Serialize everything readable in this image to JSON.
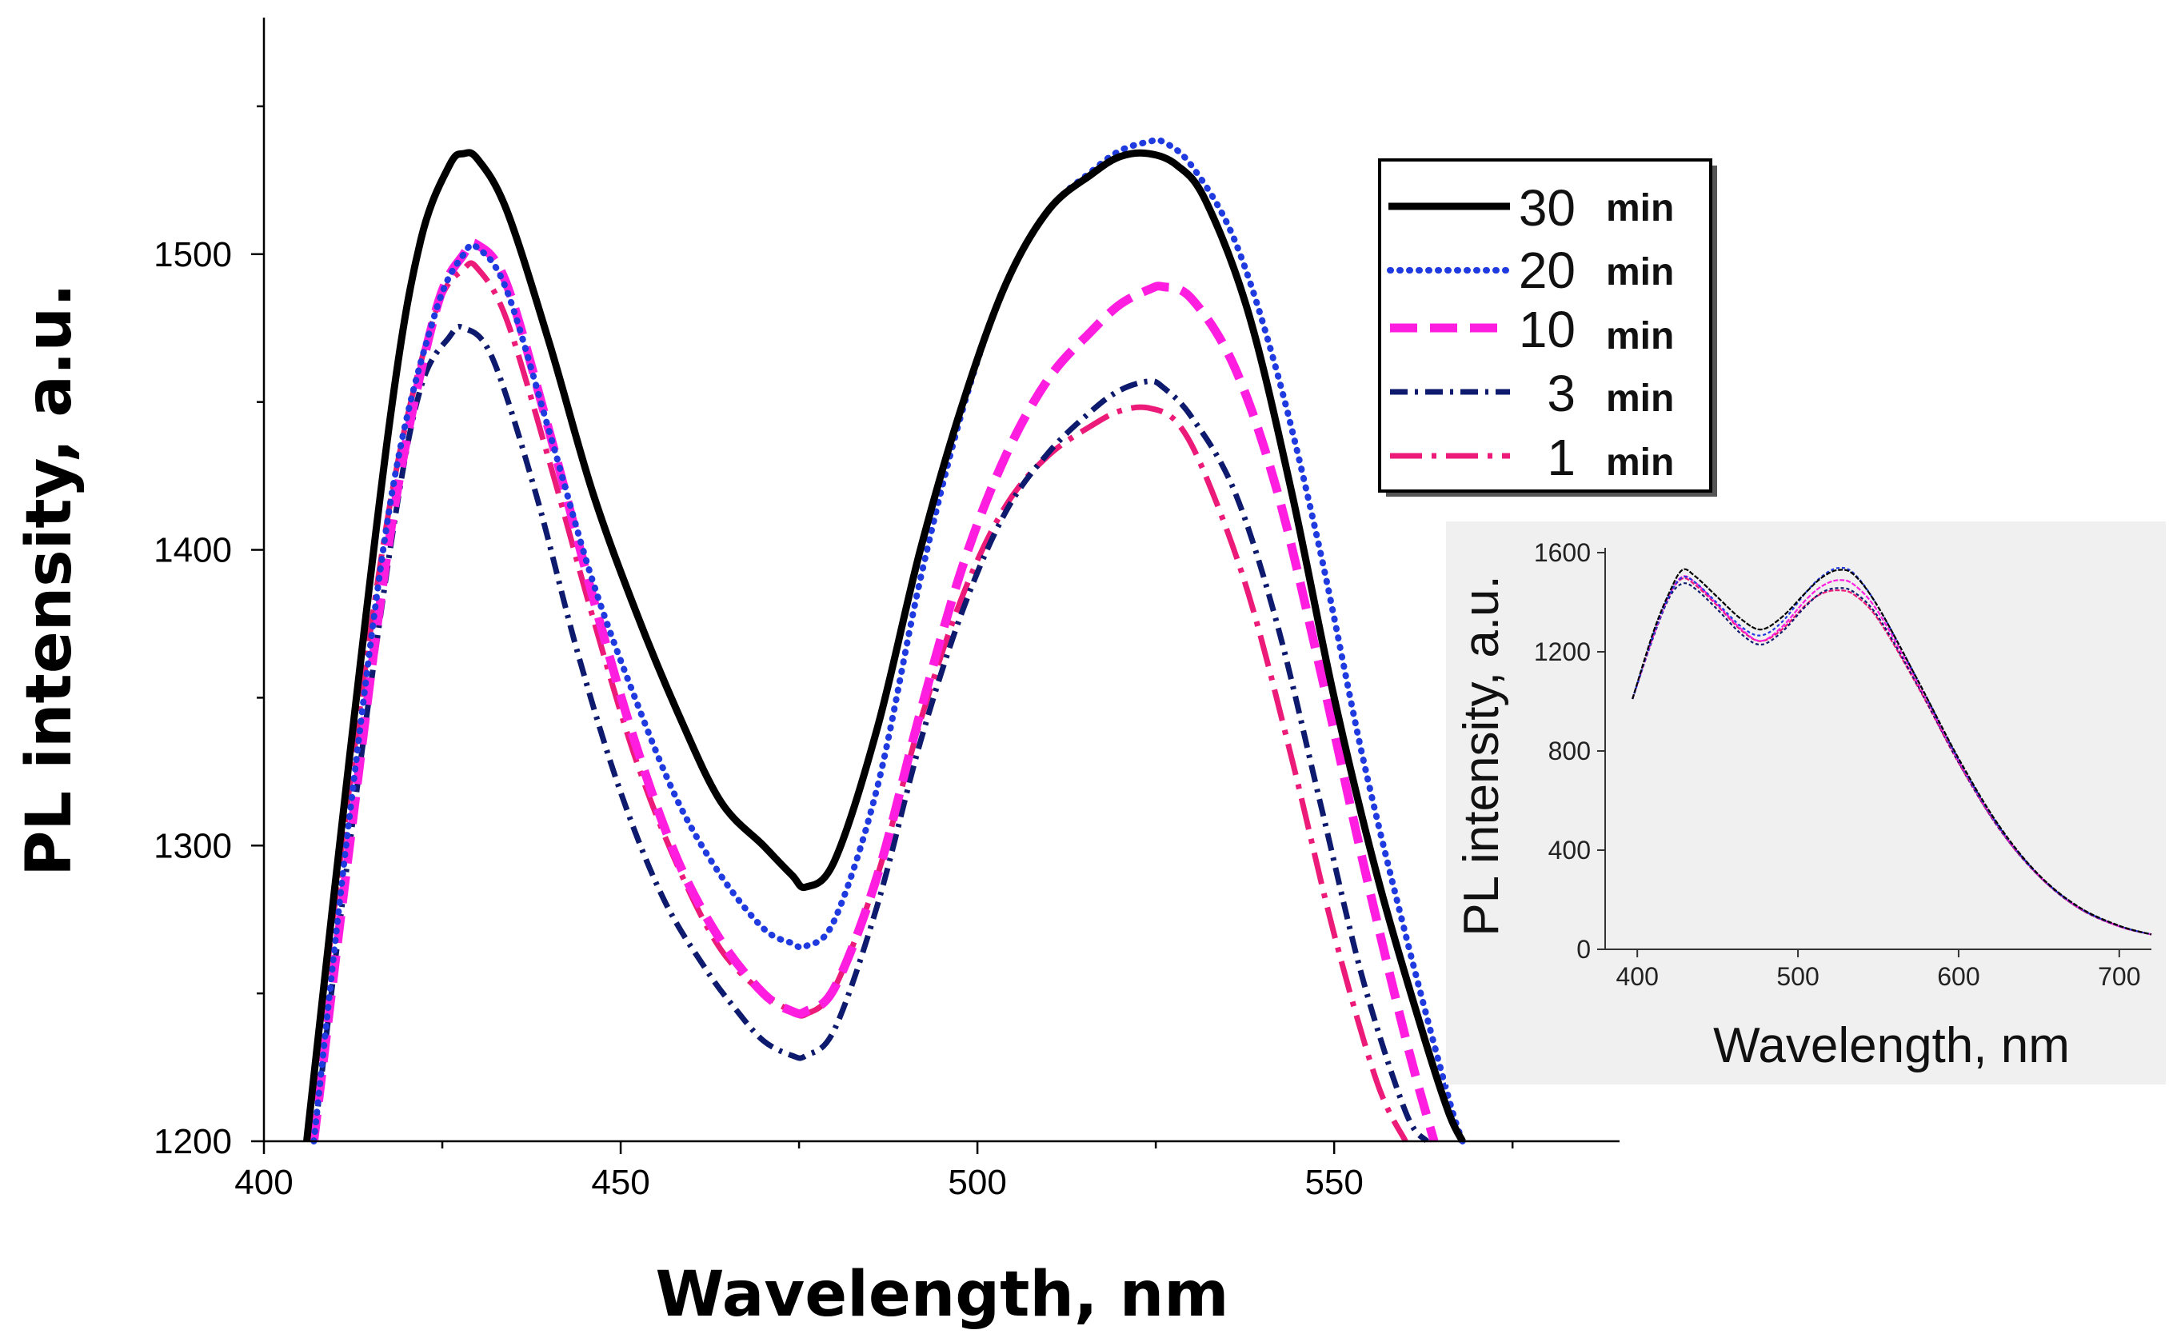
{
  "chart_data": [
    {
      "type": "line",
      "id": "main",
      "xlabel": "Wavelength, nm",
      "ylabel": "PL intensity, a.u.",
      "xlim": [
        400,
        590
      ],
      "ylim": [
        1200,
        1580
      ],
      "xticks": [
        400,
        450,
        500,
        550
      ],
      "yticks": [
        1200,
        1300,
        1400,
        1500
      ],
      "legend_position": "top-right",
      "series": [
        {
          "name": "30",
          "unit": "min",
          "color": "#000000",
          "style": "solid",
          "x": [
            406,
            412,
            418,
            422,
            426,
            428,
            430,
            434,
            440,
            446,
            452,
            458,
            464,
            470,
            474,
            476,
            480,
            486,
            492,
            498,
            504,
            510,
            516,
            520,
            524,
            528,
            532,
            538,
            544,
            550,
            556,
            562,
            566,
            568
          ],
          "y": [
            1200,
            1330,
            1450,
            1505,
            1530,
            1534,
            1532,
            1515,
            1470,
            1420,
            1380,
            1345,
            1315,
            1300,
            1290,
            1286,
            1295,
            1340,
            1400,
            1450,
            1490,
            1515,
            1527,
            1533,
            1534,
            1530,
            1518,
            1480,
            1420,
            1350,
            1290,
            1240,
            1210,
            1200
          ]
        },
        {
          "name": "20",
          "unit": "min",
          "color": "#1f3be0",
          "style": "dotted",
          "x": [
            407,
            412,
            418,
            424,
            428,
            430,
            434,
            440,
            446,
            452,
            458,
            464,
            470,
            474,
            476,
            480,
            486,
            492,
            498,
            504,
            510,
            516,
            520,
            524,
            526,
            530,
            536,
            542,
            548,
            554,
            560,
            566,
            568
          ],
          "y": [
            1200,
            1310,
            1420,
            1480,
            1500,
            1502,
            1488,
            1440,
            1390,
            1350,
            1315,
            1290,
            1272,
            1267,
            1266,
            1275,
            1320,
            1390,
            1448,
            1490,
            1515,
            1528,
            1535,
            1538,
            1538,
            1530,
            1505,
            1460,
            1400,
            1330,
            1270,
            1215,
            1200
          ]
        },
        {
          "name": "10",
          "unit": "min",
          "color": "#ff1ee0",
          "style": "dashed",
          "x": [
            407,
            412,
            418,
            424,
            428,
            430,
            434,
            440,
            446,
            452,
            458,
            464,
            470,
            474,
            476,
            480,
            486,
            492,
            498,
            504,
            510,
            516,
            520,
            524,
            526,
            530,
            536,
            542,
            548,
            554,
            560,
            564
          ],
          "y": [
            1200,
            1300,
            1410,
            1480,
            1500,
            1503,
            1490,
            1440,
            1385,
            1335,
            1295,
            1268,
            1250,
            1244,
            1244,
            1252,
            1290,
            1345,
            1395,
            1432,
            1458,
            1474,
            1483,
            1488,
            1489,
            1485,
            1462,
            1420,
            1360,
            1295,
            1235,
            1200
          ]
        },
        {
          "name": "3",
          "unit": "min",
          "color": "#0d1a6e",
          "style": "dashdot",
          "x": [
            407,
            412,
            418,
            422,
            426,
            428,
            432,
            438,
            444,
            450,
            456,
            462,
            466,
            470,
            474,
            476,
            480,
            486,
            492,
            498,
            504,
            510,
            516,
            520,
            524,
            526,
            530,
            536,
            542,
            548,
            554,
            560,
            563
          ],
          "y": [
            1200,
            1300,
            1405,
            1455,
            1472,
            1475,
            1465,
            1420,
            1365,
            1318,
            1282,
            1258,
            1245,
            1234,
            1229,
            1229,
            1238,
            1280,
            1335,
            1380,
            1413,
            1433,
            1447,
            1454,
            1457,
            1455,
            1445,
            1420,
            1375,
            1315,
            1255,
            1210,
            1200
          ]
        },
        {
          "name": "1",
          "unit": "min",
          "color": "#ec1a78",
          "style": "dashdotlong",
          "x": [
            406,
            412,
            418,
            424,
            428,
            430,
            434,
            440,
            446,
            452,
            458,
            464,
            470,
            474,
            476,
            480,
            486,
            492,
            498,
            504,
            510,
            516,
            520,
            524,
            528,
            532,
            538,
            544,
            550,
            556,
            560
          ],
          "y": [
            1200,
            1320,
            1420,
            1480,
            1495,
            1495,
            1478,
            1430,
            1378,
            1330,
            1293,
            1265,
            1250,
            1244,
            1243,
            1252,
            1290,
            1342,
            1385,
            1415,
            1432,
            1442,
            1447,
            1448,
            1443,
            1425,
            1385,
            1330,
            1270,
            1220,
            1200
          ]
        }
      ]
    },
    {
      "type": "line",
      "id": "inset",
      "xlabel": "Wavelength, nm",
      "ylabel": "PL intensity, a.u.",
      "xlim": [
        380,
        720
      ],
      "ylim": [
        0,
        1700
      ],
      "xticks": [
        400,
        500,
        600,
        700
      ],
      "yticks": [
        0,
        400,
        800,
        1200,
        1600
      ],
      "series": [
        {
          "name": "30 min",
          "color": "#000000",
          "x": [
            397,
            410,
            420,
            428,
            436,
            450,
            465,
            477,
            490,
            505,
            515,
            525,
            535,
            550,
            575,
            600,
            625,
            650,
            675,
            700,
            720
          ],
          "y": [
            1010,
            1280,
            1440,
            1530,
            1505,
            1420,
            1330,
            1290,
            1340,
            1440,
            1500,
            1530,
            1510,
            1380,
            1080,
            770,
            500,
            300,
            170,
            95,
            60
          ]
        },
        {
          "name": "20 min",
          "color": "#1f3be0",
          "x": [
            397,
            410,
            420,
            428,
            436,
            450,
            465,
            477,
            490,
            505,
            515,
            525,
            535,
            550,
            575,
            600,
            625,
            650,
            675,
            700,
            720
          ],
          "y": [
            1010,
            1270,
            1430,
            1500,
            1480,
            1395,
            1300,
            1266,
            1320,
            1440,
            1505,
            1538,
            1515,
            1380,
            1080,
            765,
            495,
            298,
            168,
            94,
            60
          ]
        },
        {
          "name": "10 min",
          "color": "#ff1ee0",
          "x": [
            397,
            410,
            420,
            428,
            436,
            450,
            465,
            477,
            490,
            505,
            515,
            525,
            535,
            550,
            575,
            600,
            625,
            650,
            675,
            700,
            720
          ],
          "y": [
            1010,
            1265,
            1430,
            1503,
            1480,
            1390,
            1290,
            1244,
            1300,
            1410,
            1465,
            1489,
            1470,
            1360,
            1070,
            760,
            493,
            297,
            167,
            93,
            60
          ]
        },
        {
          "name": "3 min",
          "color": "#0d1a6e",
          "x": [
            397,
            410,
            420,
            428,
            436,
            450,
            465,
            477,
            490,
            505,
            515,
            525,
            535,
            550,
            575,
            600,
            625,
            650,
            675,
            700,
            720
          ],
          "y": [
            1010,
            1260,
            1420,
            1475,
            1455,
            1370,
            1270,
            1229,
            1280,
            1385,
            1440,
            1457,
            1440,
            1340,
            1060,
            755,
            490,
            296,
            166,
            93,
            60
          ]
        },
        {
          "name": "1 min",
          "color": "#ec1a78",
          "x": [
            397,
            410,
            420,
            428,
            436,
            450,
            465,
            477,
            490,
            505,
            515,
            525,
            535,
            550,
            575,
            600,
            625,
            650,
            675,
            700,
            720
          ],
          "y": [
            1010,
            1270,
            1430,
            1495,
            1470,
            1385,
            1285,
            1243,
            1290,
            1390,
            1435,
            1448,
            1430,
            1330,
            1055,
            752,
            488,
            295,
            165,
            92,
            60
          ]
        }
      ]
    }
  ]
}
